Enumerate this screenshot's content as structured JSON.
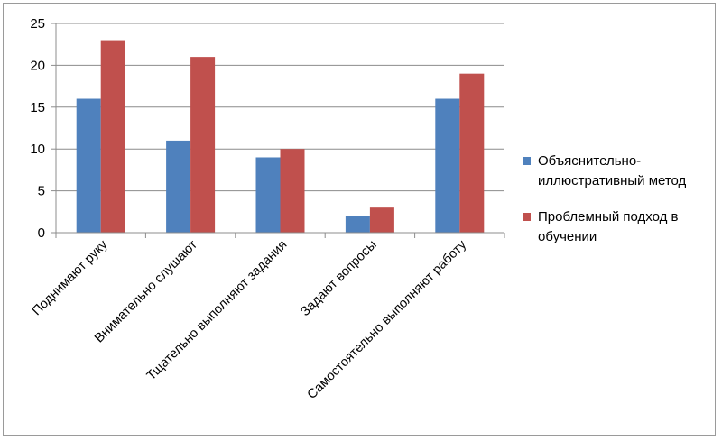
{
  "chart_data": {
    "type": "bar",
    "title": "",
    "xlabel": "",
    "ylabel": "",
    "ylim": [
      0,
      25
    ],
    "yticks": [
      0,
      5,
      10,
      15,
      20,
      25
    ],
    "grid": "horizontal",
    "legend_position": "right",
    "categories": [
      "Поднимают руку",
      "Внимательно слушают",
      "Тщательно выполняют задания",
      "Задают вопросы",
      "Самостоятельно выполняют работу"
    ],
    "series": [
      {
        "name": "Объяснительно-иллюстративный метод",
        "legend_lines": [
          "Объяснительно-",
          "иллюстративный метод"
        ],
        "color": "#4F81BD",
        "values": [
          16,
          11,
          9,
          2,
          16
        ]
      },
      {
        "name": "Проблемный подход в обучении",
        "legend_lines": [
          "Проблемный подход в",
          "обучении"
        ],
        "color": "#C0504D",
        "values": [
          23,
          21,
          10,
          3,
          19
        ]
      }
    ]
  }
}
